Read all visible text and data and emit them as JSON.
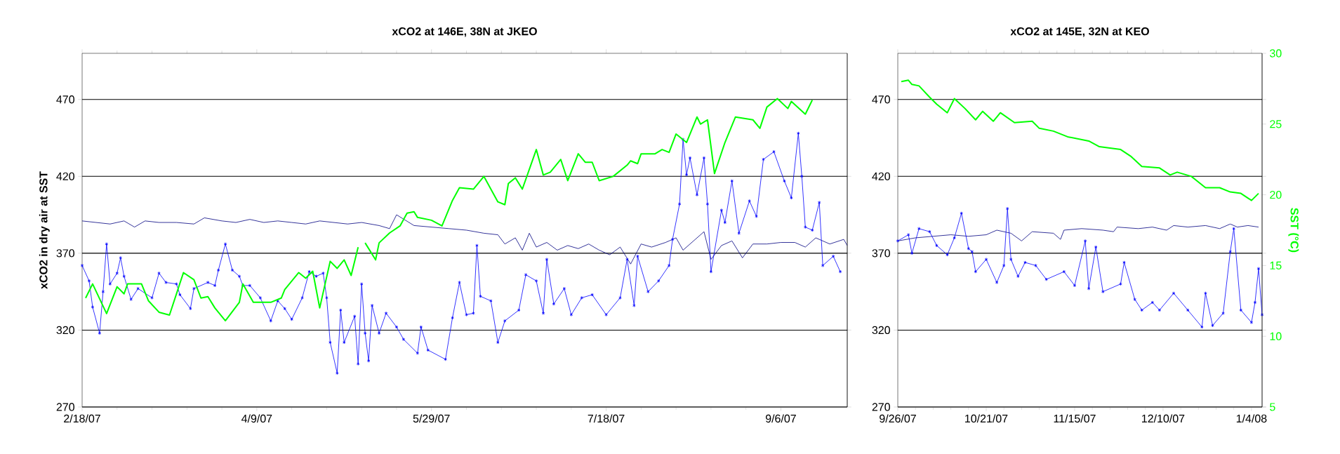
{
  "chart_data": [
    {
      "type": "line",
      "title": "xCO2 at 146E, 38N at JKEO",
      "ylabel": "xCO2 in dry air at SST",
      "xlim": [
        "2007-02-18",
        "2007-09-25"
      ],
      "xticks": [
        {
          "value": "2007-02-18",
          "label": "2/18/07"
        },
        {
          "value": "2007-04-09",
          "label": "4/9/07"
        },
        {
          "value": "2007-05-29",
          "label": "5/29/07"
        },
        {
          "value": "2007-07-18",
          "label": "7/18/07"
        },
        {
          "value": "2007-09-06",
          "label": "9/6/07"
        }
      ],
      "ylim": [
        270,
        500
      ],
      "yticks": [
        270,
        320,
        370,
        420,
        470
      ],
      "y2lim": [
        5,
        30
      ],
      "tick_labels": "xy",
      "grid": "y",
      "series": [
        {
          "color": "#000080",
          "x": [
            "2007-02-18",
            "2007-02-22",
            "2007-02-26",
            "2007-03-02",
            "2007-03-05",
            "2007-03-08",
            "2007-03-12",
            "2007-03-17",
            "2007-03-22",
            "2007-03-25",
            "2007-03-30",
            "2007-04-03",
            "2007-04-07",
            "2007-04-11",
            "2007-04-15",
            "2007-04-19",
            "2007-04-23",
            "2007-04-27",
            "2007-05-01",
            "2007-05-05",
            "2007-05-09",
            "2007-05-14",
            "2007-05-17",
            "2007-05-19",
            "2007-05-24",
            "2007-05-29",
            "2007-06-03",
            "2007-06-08",
            "2007-06-13",
            "2007-06-17",
            "2007-06-19",
            "2007-06-22",
            "2007-06-24",
            "2007-06-26",
            "2007-06-28",
            "2007-07-01",
            "2007-07-04",
            "2007-07-07",
            "2007-07-10",
            "2007-07-13",
            "2007-07-16",
            "2007-07-19",
            "2007-07-22",
            "2007-07-25",
            "2007-07-28",
            "2007-07-31",
            "2007-08-04",
            "2007-08-07",
            "2007-08-09",
            "2007-08-12",
            "2007-08-15",
            "2007-08-17",
            "2007-08-20",
            "2007-08-23",
            "2007-08-26",
            "2007-08-29",
            "2007-09-02",
            "2007-09-06",
            "2007-09-10",
            "2007-09-13",
            "2007-09-16",
            "2007-09-20",
            "2007-09-24",
            "2007-09-25"
          ],
          "values": [
            391,
            390,
            389,
            391,
            387,
            391,
            390,
            390,
            389,
            393,
            391,
            390,
            392,
            390,
            391,
            390,
            389,
            391,
            390,
            389,
            390,
            388,
            386,
            395,
            388,
            387,
            386,
            385,
            383,
            382,
            376,
            380,
            372,
            383,
            374,
            377,
            372,
            375,
            373,
            376,
            372,
            369,
            374,
            363,
            376,
            374,
            377,
            380,
            372,
            378,
            384,
            366,
            375,
            378,
            367,
            376,
            376,
            377,
            377,
            374,
            380,
            376,
            379,
            375
          ]
        },
        {
          "color": "#0000ff",
          "marker": "cross",
          "x": [
            "2007-02-18",
            "2007-02-20",
            "2007-02-21",
            "2007-02-23",
            "2007-02-24",
            "2007-02-25",
            "2007-02-26",
            "2007-02-28",
            "2007-03-01",
            "2007-03-02",
            "2007-03-04",
            "2007-03-06",
            "2007-03-10",
            "2007-03-12",
            "2007-03-14",
            "2007-03-17",
            "2007-03-18",
            "2007-03-21",
            "2007-03-22",
            "2007-03-26",
            "2007-03-28",
            "2007-03-29",
            "2007-03-31",
            "2007-04-02",
            "2007-04-04",
            "2007-04-05",
            "2007-04-07",
            "2007-04-10",
            "2007-04-13",
            "2007-04-15",
            "2007-04-17",
            "2007-04-19",
            "2007-04-22",
            "2007-04-24",
            "2007-04-26",
            "2007-04-28",
            "2007-04-29",
            "2007-04-30",
            "2007-05-02",
            "2007-05-03",
            "2007-05-04",
            "2007-05-07",
            "2007-05-08",
            "2007-05-09",
            "2007-05-10",
            "2007-05-11",
            "2007-05-12",
            "2007-05-14",
            "2007-05-16",
            "2007-05-19",
            "2007-05-21",
            "2007-05-25",
            "2007-05-26",
            "2007-05-28",
            "2007-06-02",
            "2007-06-04",
            "2007-06-06",
            "2007-06-08",
            "2007-06-10",
            "2007-06-11",
            "2007-06-12",
            "2007-06-15",
            "2007-06-17",
            "2007-06-19",
            "2007-06-23",
            "2007-06-25",
            "2007-06-28",
            "2007-06-30",
            "2007-07-01",
            "2007-07-03",
            "2007-07-06",
            "2007-07-08",
            "2007-07-11",
            "2007-07-14",
            "2007-07-18",
            "2007-07-22",
            "2007-07-24",
            "2007-07-26",
            "2007-07-27",
            "2007-07-30",
            "2007-08-02",
            "2007-08-05",
            "2007-08-06",
            "2007-08-08",
            "2007-08-09",
            "2007-08-10",
            "2007-08-11",
            "2007-08-13",
            "2007-08-15",
            "2007-08-16",
            "2007-08-17",
            "2007-08-20",
            "2007-08-21",
            "2007-08-23",
            "2007-08-25",
            "2007-08-28",
            "2007-08-30",
            "2007-09-01",
            "2007-09-04",
            "2007-09-07",
            "2007-09-09",
            "2007-09-11",
            "2007-09-12",
            "2007-09-13",
            "2007-09-15",
            "2007-09-17",
            "2007-09-18",
            "2007-09-21",
            "2007-09-23"
          ],
          "values": [
            362,
            352,
            335,
            318,
            345,
            376,
            350,
            357,
            367,
            355,
            340,
            347,
            341,
            357,
            351,
            350,
            343,
            334,
            347,
            351,
            349,
            359,
            376,
            359,
            355,
            349,
            349,
            341,
            326,
            339,
            334,
            327,
            341,
            358,
            355,
            357,
            341,
            312,
            292,
            333,
            312,
            329,
            298,
            350,
            318,
            300,
            336,
            318,
            331,
            322,
            314,
            305,
            322,
            307,
            301,
            328,
            351,
            330,
            331,
            375,
            342,
            339,
            312,
            326,
            333,
            356,
            352,
            331,
            366,
            337,
            347,
            330,
            341,
            343,
            330,
            341,
            366,
            336,
            368,
            345,
            352,
            362,
            379,
            402,
            444,
            421,
            432,
            408,
            432,
            402,
            358,
            398,
            390,
            417,
            383,
            404,
            394,
            431,
            436,
            417,
            406,
            448,
            420,
            387,
            385,
            403,
            362,
            368,
            358
          ]
        },
        {
          "color": "#00ff00",
          "axis": "y2",
          "x": [
            "2007-02-19",
            "2007-02-21",
            "2007-02-25",
            "2007-02-28",
            "2007-03-02",
            "2007-03-03",
            "2007-03-07",
            "2007-03-09",
            "2007-03-12",
            "2007-03-15",
            "2007-03-19",
            "2007-03-22",
            "2007-03-24",
            "2007-03-26",
            "2007-03-28",
            "2007-03-31",
            "2007-04-04",
            "2007-04-05",
            "2007-04-08",
            "2007-04-13",
            "2007-04-16",
            "2007-04-17",
            "2007-04-21",
            "2007-04-23",
            "2007-04-25",
            "2007-04-27",
            "2007-04-30",
            "2007-05-02",
            "2007-05-04",
            "2007-05-06",
            "2007-05-08",
            "2007-05-09",
            "2007-05-10",
            "2007-05-13",
            "2007-05-14",
            "2007-05-17",
            "2007-05-20",
            "2007-05-22",
            "2007-05-24",
            "2007-05-25",
            "2007-05-29",
            "2007-06-01",
            "2007-06-04",
            "2007-06-06",
            "2007-06-10",
            "2007-06-13",
            "2007-06-17",
            "2007-06-19",
            "2007-06-20",
            "2007-06-22",
            "2007-06-24",
            "2007-06-28",
            "2007-06-30",
            "2007-07-02",
            "2007-07-05",
            "2007-07-07",
            "2007-07-10",
            "2007-07-12",
            "2007-07-14",
            "2007-07-16",
            "2007-07-20",
            "2007-07-24",
            "2007-07-25",
            "2007-07-27",
            "2007-07-28",
            "2007-08-01",
            "2007-08-03",
            "2007-08-05",
            "2007-08-07",
            "2007-08-10",
            "2007-08-13",
            "2007-08-14",
            "2007-08-16",
            "2007-08-18",
            "2007-08-21",
            "2007-08-24",
            "2007-08-29",
            "2007-08-31",
            "2007-09-02",
            "2007-09-05",
            "2007-09-08",
            "2007-09-09",
            "2007-09-13",
            "2007-09-15"
          ],
          "values": [
            12.7,
            13.7,
            11.6,
            13.5,
            13.0,
            13.7,
            13.7,
            12.5,
            11.7,
            11.5,
            14.5,
            14.0,
            12.7,
            12.8,
            12.0,
            11.1,
            12.4,
            13.7,
            12.4,
            12.4,
            12.7,
            13.3,
            14.5,
            14.1,
            14.6,
            12.0,
            15.3,
            14.8,
            15.4,
            14.3,
            16.3,
            null,
            16.6,
            15.4,
            16.6,
            17.3,
            17.8,
            18.7,
            18.8,
            18.4,
            18.2,
            17.8,
            19.6,
            20.5,
            20.4,
            21.3,
            19.5,
            19.3,
            20.8,
            21.2,
            20.4,
            23.2,
            21.4,
            21.6,
            22.5,
            21.0,
            22.9,
            22.3,
            22.3,
            21.0,
            21.3,
            22.1,
            22.4,
            22.2,
            22.9,
            22.9,
            23.2,
            23.0,
            24.3,
            23.7,
            25.5,
            25.0,
            25.3,
            21.5,
            23.7,
            25.5,
            25.3,
            24.7,
            26.2,
            26.8,
            26.1,
            26.6,
            25.7,
            26.7
          ]
        }
      ]
    },
    {
      "type": "line",
      "title": "xCO2 at 145E, 32N at KEO",
      "y2label": "SST (°C)",
      "xlim": [
        "2007-09-26",
        "2008-01-07"
      ],
      "xticks": [
        {
          "value": "2007-09-26",
          "label": "9/26/07"
        },
        {
          "value": "2007-10-21",
          "label": "10/21/07"
        },
        {
          "value": "2007-11-15",
          "label": "11/15/07"
        },
        {
          "value": "2007-12-10",
          "label": "12/10/07"
        },
        {
          "value": "2008-01-04",
          "label": "1/4/08"
        }
      ],
      "ylim": [
        270,
        500
      ],
      "yticks": [
        270,
        320,
        370,
        420,
        470
      ],
      "y2lim": [
        5,
        30
      ],
      "y2ticks": [
        5,
        10,
        15,
        20,
        25,
        30
      ],
      "grid": "y",
      "series": [
        {
          "color": "#000080",
          "x": [
            "2007-09-26",
            "2007-10-01",
            "2007-10-06",
            "2007-10-11",
            "2007-10-16",
            "2007-10-21",
            "2007-10-24",
            "2007-10-28",
            "2007-10-31",
            "2007-11-03",
            "2007-11-09",
            "2007-11-11",
            "2007-11-12",
            "2007-11-17",
            "2007-11-23",
            "2007-11-26",
            "2007-11-27",
            "2007-12-03",
            "2007-12-07",
            "2007-12-11",
            "2007-12-13",
            "2007-12-17",
            "2007-12-22",
            "2007-12-26",
            "2007-12-29",
            "2007-12-31",
            "2008-01-03",
            "2008-01-06"
          ],
          "values": [
            378,
            380,
            381,
            382,
            381,
            382,
            385,
            383,
            378,
            384,
            383,
            379,
            385,
            386,
            385,
            384,
            387,
            386,
            387,
            385,
            388,
            387,
            388,
            386,
            389,
            387,
            388,
            387
          ]
        },
        {
          "color": "#0000ff",
          "marker": "cross",
          "x": [
            "2007-09-26",
            "2007-09-29",
            "2007-09-30",
            "2007-10-02",
            "2007-10-05",
            "2007-10-07",
            "2007-10-10",
            "2007-10-12",
            "2007-10-14",
            "2007-10-16",
            "2007-10-17",
            "2007-10-18",
            "2007-10-21",
            "2007-10-24",
            "2007-10-26",
            "2007-10-27",
            "2007-10-28",
            "2007-10-30",
            "2007-11-01",
            "2007-11-04",
            "2007-11-07",
            "2007-11-12",
            "2007-11-15",
            "2007-11-18",
            "2007-11-19",
            "2007-11-21",
            "2007-11-23",
            "2007-11-28",
            "2007-11-29",
            "2007-12-02",
            "2007-12-04",
            "2007-12-07",
            "2007-12-09",
            "2007-12-13",
            "2007-12-17",
            "2007-12-21",
            "2007-12-22",
            "2007-12-24",
            "2007-12-27",
            "2007-12-29",
            "2007-12-30",
            "2008-01-01",
            "2008-01-04",
            "2008-01-05",
            "2008-01-06",
            "2008-01-07"
          ],
          "values": [
            378,
            382,
            370,
            386,
            384,
            375,
            369,
            380,
            396,
            373,
            371,
            358,
            366,
            351,
            362,
            399,
            366,
            355,
            364,
            362,
            353,
            358,
            349,
            378,
            347,
            374,
            345,
            350,
            364,
            340,
            333,
            338,
            333,
            344,
            333,
            322,
            344,
            323,
            331,
            371,
            386,
            333,
            325,
            338,
            360,
            330
          ]
        },
        {
          "color": "#00ff00",
          "axis": "y2",
          "x": [
            "2007-09-27",
            "2007-09-29",
            "2007-09-30",
            "2007-10-02",
            "2007-10-05",
            "2007-10-07",
            "2007-10-10",
            "2007-10-12",
            "2007-10-15",
            "2007-10-18",
            "2007-10-20",
            "2007-10-23",
            "2007-10-25",
            "2007-10-29",
            "2007-11-03",
            "2007-11-05",
            "2007-11-09",
            "2007-11-13",
            "2007-11-19",
            "2007-11-22",
            "2007-11-28",
            "2007-12-01",
            "2007-12-04",
            "2007-12-09",
            "2007-12-12",
            "2007-12-14",
            "2007-12-18",
            "2007-12-22",
            "2007-12-26",
            "2007-12-29",
            "2008-01-01",
            "2008-01-04",
            "2008-01-06"
          ],
          "values": [
            28.0,
            28.1,
            27.8,
            27.7,
            26.9,
            26.4,
            25.8,
            26.8,
            26.1,
            25.3,
            25.9,
            25.2,
            25.8,
            25.1,
            25.2,
            24.7,
            24.5,
            24.1,
            23.8,
            23.4,
            23.2,
            22.7,
            22.0,
            21.9,
            21.4,
            21.6,
            21.3,
            20.5,
            20.5,
            20.2,
            20.1,
            19.6,
            20.1
          ]
        }
      ]
    }
  ]
}
